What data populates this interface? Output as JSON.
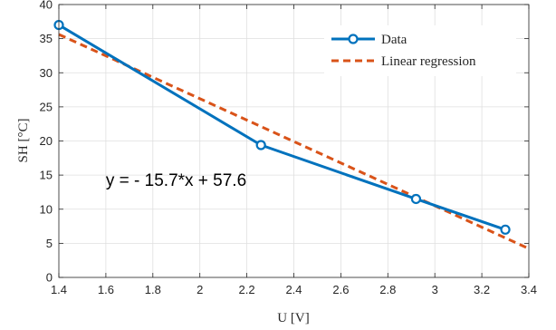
{
  "chart_data": {
    "type": "line",
    "title": "",
    "xlabel": "U [V]",
    "ylabel": "SH [°C]",
    "xlim": [
      1.4,
      3.4
    ],
    "ylim": [
      0,
      40
    ],
    "xticks": [
      "1.4",
      "1.6",
      "1.8",
      "2",
      "2.2",
      "2.4",
      "2.6",
      "2.8",
      "3",
      "3.2",
      "3.4"
    ],
    "yticks": [
      "0",
      "5",
      "10",
      "15",
      "20",
      "25",
      "30",
      "35",
      "40"
    ],
    "grid": true,
    "legend_position": "top-right",
    "series": [
      {
        "name": "Data",
        "style": "solid-circle-markers",
        "color": "#0072BD",
        "x": [
          1.4,
          2.26,
          2.92,
          3.3
        ],
        "y": [
          37.0,
          19.4,
          11.5,
          7.0
        ]
      },
      {
        "name": "Linear regression",
        "style": "dashed",
        "color": "#D95319",
        "x": [
          1.4,
          3.4
        ],
        "y": [
          35.62,
          4.22
        ]
      }
    ],
    "annotation": {
      "text": "y = - 15.7*x + 57.6",
      "x": 1.6,
      "y": 13.4
    }
  }
}
